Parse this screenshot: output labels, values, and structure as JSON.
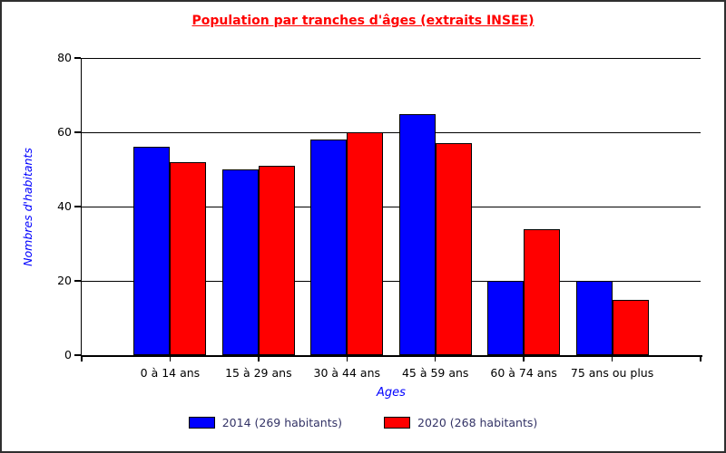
{
  "title": "Population par tranches d'âges (extraits INSEE)",
  "chart_data": {
    "type": "bar",
    "title": "Population par tranches d'âges (extraits INSEE)",
    "categories": [
      "0 à 14 ans",
      "15 à 29 ans",
      "30 à 44 ans",
      "45 à 59 ans",
      "60 à 74 ans",
      "75 ans ou plus"
    ],
    "series": [
      {
        "name": "2014 (269 habitants)",
        "color": "#0000ff",
        "values": [
          56,
          50,
          58,
          65,
          20,
          20
        ]
      },
      {
        "name": "2020 (268 habitants)",
        "color": "#ff0000",
        "values": [
          52,
          51,
          60,
          57,
          34,
          15
        ]
      }
    ],
    "xlabel": "Ages",
    "ylabel": "Nombres d'habitants",
    "ylim": [
      0,
      80
    ],
    "yticks": [
      0,
      20,
      40,
      60,
      80
    ],
    "grid": true,
    "legend_position": "bottom"
  },
  "colors": {
    "title_text": "#ff0000",
    "axis_title_text": "#0000ff",
    "tick_label_text": "#000000",
    "legend_text": "#333366",
    "axis_line": "#000000",
    "gridline": "#000000",
    "series_2014": "#0000ff",
    "series_2020": "#ff0000",
    "background": "#ffffff",
    "frame_border": "#2f2f2f"
  }
}
